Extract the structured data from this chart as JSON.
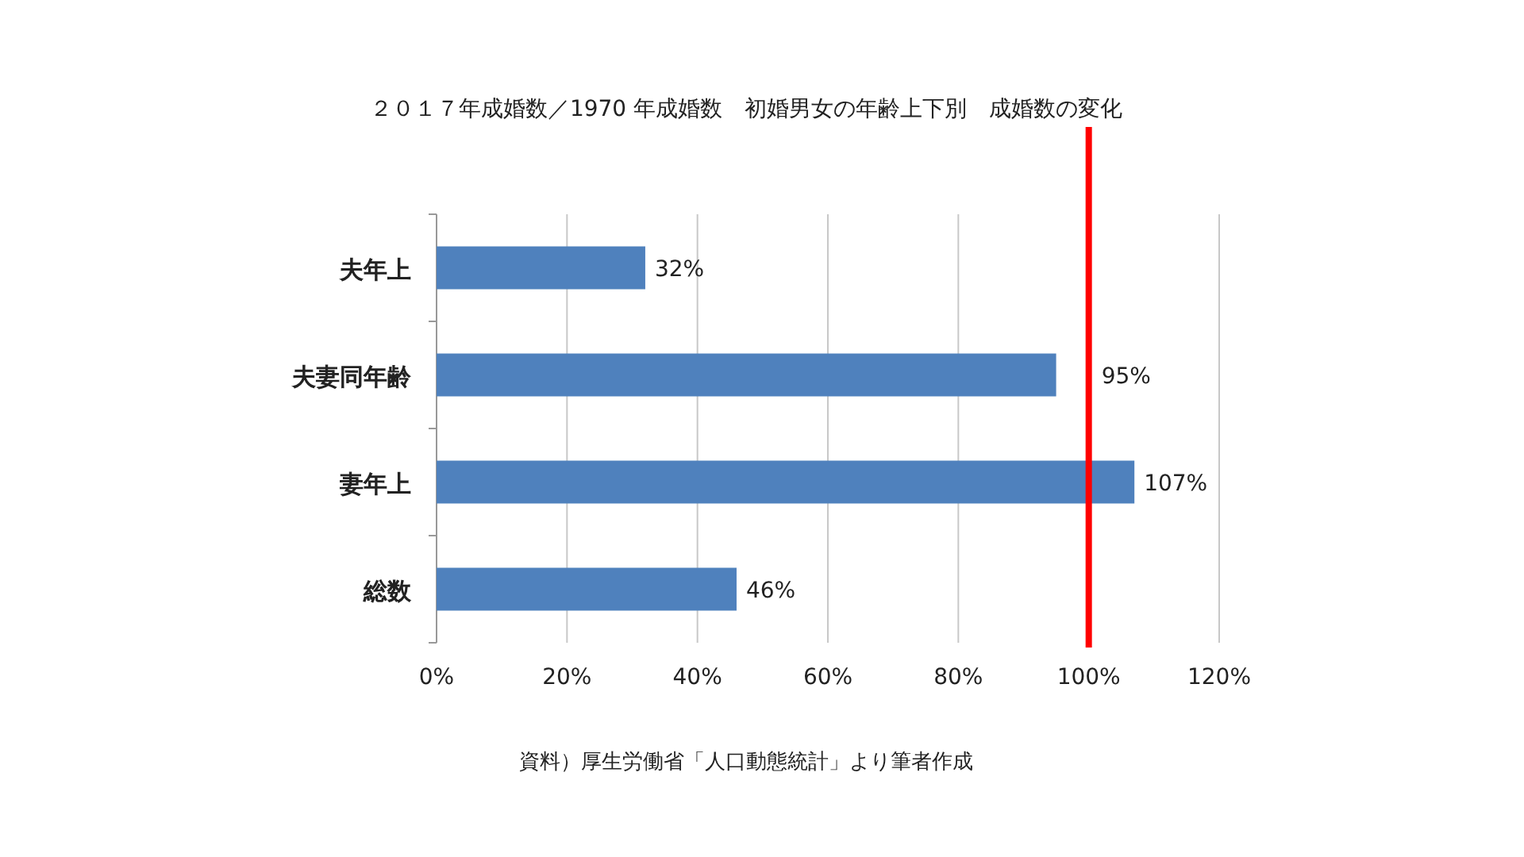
{
  "chart_data": {
    "type": "bar",
    "orientation": "horizontal",
    "title": "２０１７年成婚数／1970 年成婚数　初婚男女の年齢上下別　成婚数の変化",
    "categories": [
      "夫年上",
      "夫妻同年齢",
      "妻年上",
      "総数"
    ],
    "values": [
      32,
      95,
      107,
      46
    ],
    "color": "#4f81bd",
    "value_labels": [
      "32%",
      "95%",
      "107%",
      "46%"
    ],
    "xlim": [
      0,
      120
    ],
    "xticks": [
      {
        "value": 0,
        "label": "0%"
      },
      {
        "value": 20,
        "label": "20%"
      },
      {
        "value": 40,
        "label": "40%"
      },
      {
        "value": 60,
        "label": "60%"
      },
      {
        "value": 80,
        "label": "80%"
      },
      {
        "value": 100,
        "label": "100%"
      },
      {
        "value": 120,
        "label": "120%"
      }
    ],
    "grid": "x",
    "ref_lines": [
      {
        "axis": "x",
        "value": 100,
        "color": "#ff0000"
      }
    ],
    "annotations": [
      "資料）厚生労働省「人口動態統計」より筆者作成"
    ]
  }
}
